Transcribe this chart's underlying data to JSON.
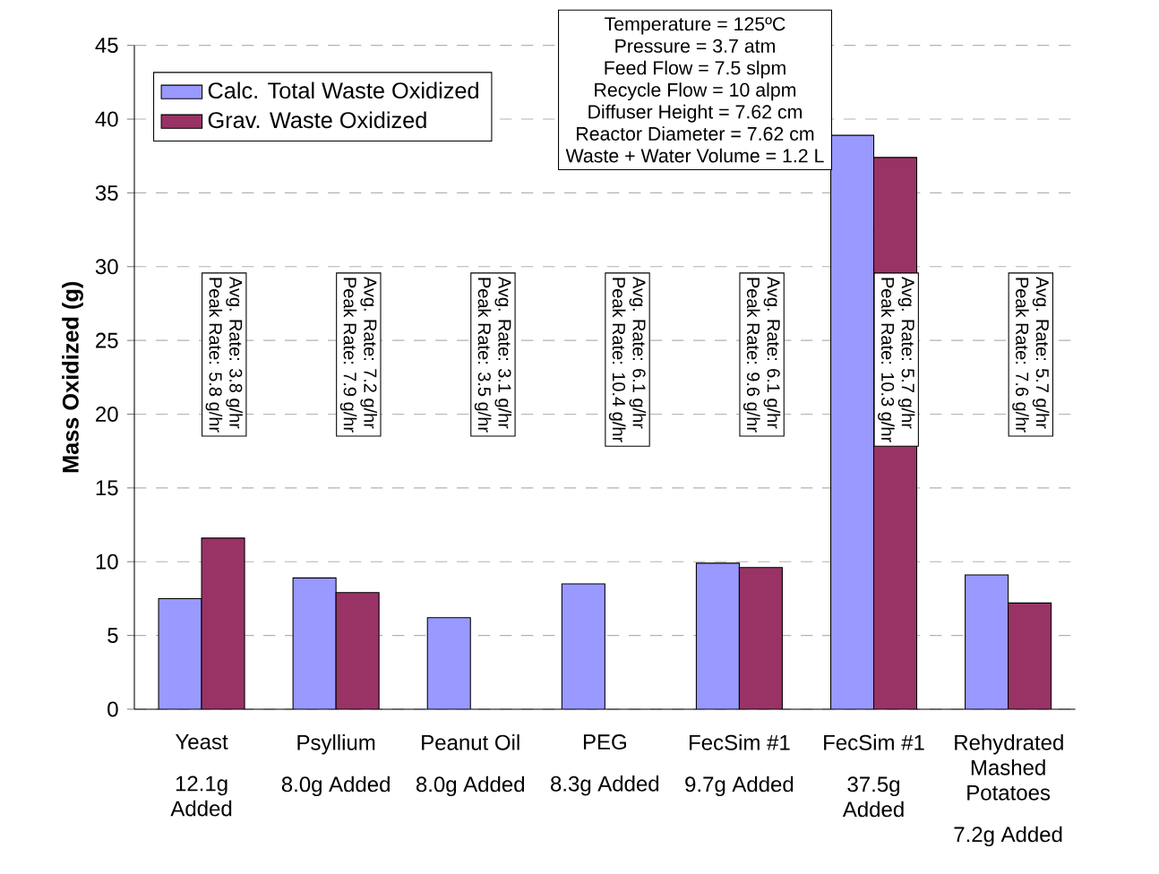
{
  "chart_data": {
    "type": "bar",
    "ylabel": "Mass Oxidized (g)",
    "categories": [
      "Yeast",
      "Psyllium",
      "Peanut Oil",
      "PEG",
      "FecSim #1",
      "FecSim #1",
      "Rehydrated Mashed Potatoes"
    ],
    "series": [
      {
        "name": "Calc. Total Waste Oxidized",
        "color": "#9999ff",
        "values": [
          7.5,
          8.9,
          6.2,
          8.5,
          9.9,
          38.9,
          9.1
        ]
      },
      {
        "name": "Grav. Waste Oxidized",
        "color": "#993366",
        "values": [
          11.6,
          7.9,
          null,
          null,
          9.6,
          37.4,
          7.2
        ]
      }
    ],
    "ylim": [
      0,
      45
    ],
    "yticks": [
      0,
      5,
      10,
      15,
      20,
      25,
      30,
      35,
      40,
      45
    ],
    "grid": "y",
    "legend": "top left",
    "annotations": [
      "Temperature = 125ºC",
      "Pressure = 3.7 atm",
      "Feed Flow = 7.5 slpm",
      "Recycle Flow = 10 alpm",
      "Diffuser Height = 7.62 cm",
      "Reactor Diameter = 7.62 cm",
      "Waste + Water Volume = 1.2 L",
      "12.1g Added",
      "8.0g Added",
      "8.0g Added",
      "8.3g Added",
      "9.7g Added",
      "37.5g Added",
      "7.2g Added",
      "Avg. Rate:  3.8 g/hr",
      "Peak Rate:  5.8 g/hr",
      "Avg. Rate:  7.2 g/hr",
      "Peak Rate:  7.9 g/hr",
      "Avg. Rate:  3.1 g/hr",
      "Peak Rate:  3.5 g/hr",
      "Avg. Rate:  6.1 g/hr",
      "Peak Rate:  10.4 g/hr",
      "Avg. Rate:  6.1 g/hr",
      "Peak Rate:  9.6 g/hr",
      "Avg. Rate:  5.7 g/hr",
      "Peak Rate:  10.3 g/hr",
      "Avg. Rate:  5.7 g/hr",
      "Peak Rate:  7.6 g/hr"
    ]
  }
}
